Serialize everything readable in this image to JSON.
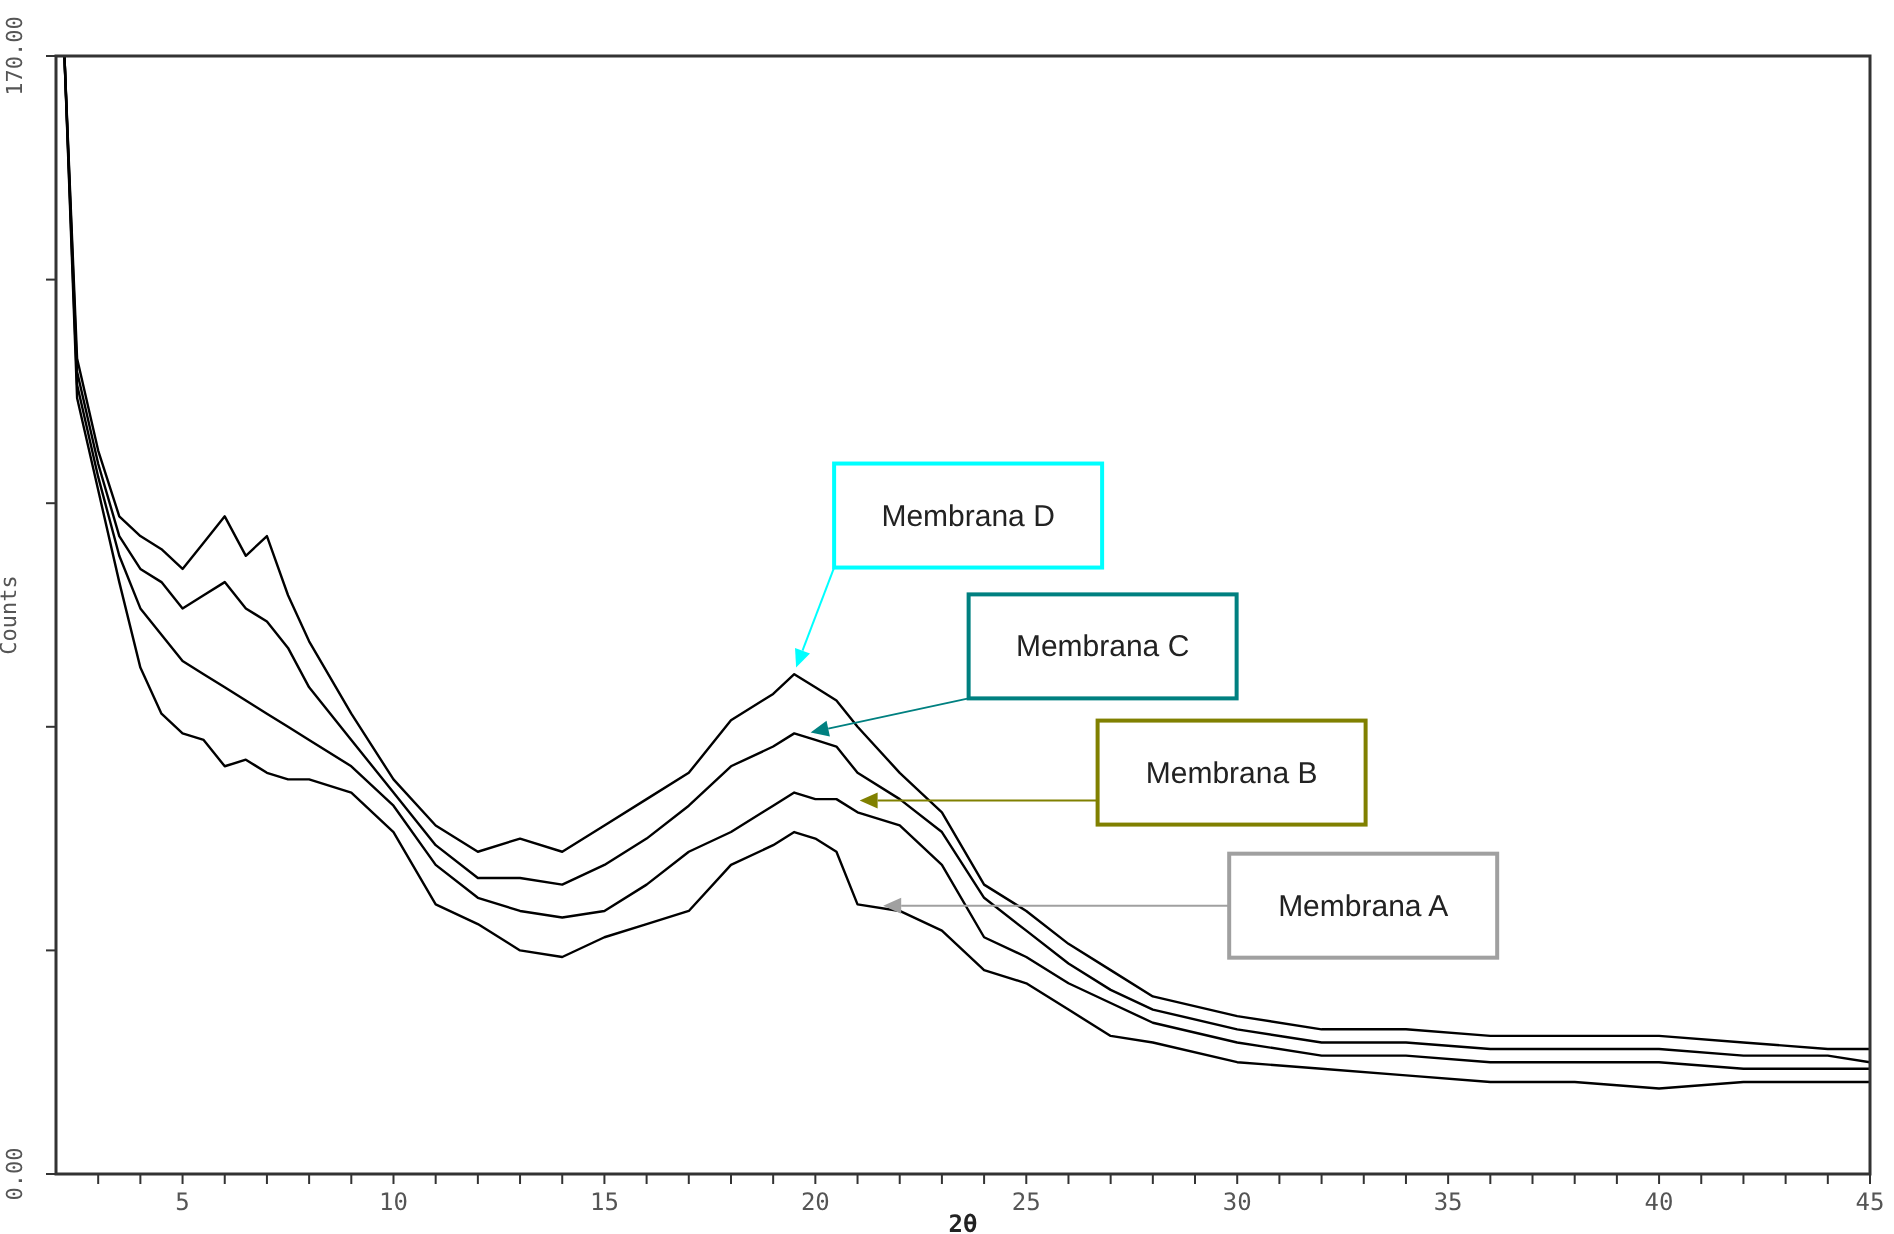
{
  "chart_data": {
    "type": "line",
    "xlabel": "2θ",
    "ylabel": "Counts",
    "x": [
      2.2,
      2.5,
      3,
      3.5,
      4,
      4.5,
      5,
      5.5,
      6,
      6.5,
      7,
      7.5,
      8,
      9,
      10,
      11,
      12,
      13,
      14,
      15,
      16,
      17,
      18,
      19,
      19.5,
      20,
      20.5,
      21,
      22,
      23,
      24,
      25,
      26,
      27,
      28,
      30,
      32,
      34,
      36,
      38,
      40,
      42,
      44,
      45
    ],
    "series": [
      {
        "color": "#000000",
        "values": [
          170,
          124,
          110,
          100,
          97,
          95,
          92,
          96,
          100,
          94,
          97,
          88,
          81,
          70,
          60,
          53,
          49,
          51,
          49,
          53,
          57,
          61,
          69,
          73,
          76,
          74,
          72,
          68,
          61,
          55,
          44,
          40,
          35,
          31,
          27,
          24,
          22,
          22,
          21,
          21,
          21,
          20,
          19,
          19
        ]
      },
      {
        "color": "#000000",
        "values": [
          170,
          122,
          108,
          97,
          92,
          90,
          86,
          88,
          90,
          86,
          84,
          80,
          74,
          66,
          58,
          50,
          45,
          45,
          44,
          47,
          51,
          56,
          62,
          65,
          67,
          66,
          65,
          61,
          57,
          52,
          42,
          37,
          32,
          28,
          25,
          22,
          20,
          20,
          19,
          19,
          19,
          18,
          18,
          17
        ]
      },
      {
        "color": "#000000",
        "values": [
          170,
          120,
          106,
          94,
          86,
          82,
          78,
          76,
          74,
          72,
          70,
          68,
          66,
          62,
          56,
          47,
          42,
          40,
          39,
          40,
          44,
          49,
          52,
          56,
          58,
          57,
          57,
          55,
          53,
          47,
          36,
          33,
          29,
          26,
          23,
          20,
          18,
          18,
          17,
          17,
          17,
          16,
          16,
          16
        ]
      },
      {
        "color": "#000000",
        "values": [
          170,
          118,
          104,
          90,
          77,
          70,
          67,
          66,
          62,
          63,
          61,
          60,
          60,
          58,
          52,
          41,
          38,
          34,
          33,
          36,
          38,
          40,
          47,
          50,
          52,
          51,
          49,
          41,
          40,
          37,
          31,
          29,
          25,
          21,
          20,
          17,
          16,
          15,
          14,
          14,
          13,
          14,
          14,
          14
        ]
      }
    ],
    "xlim": [
      2,
      45
    ],
    "xticks": [
      {
        "value": 3,
        "label": null
      },
      {
        "value": 4,
        "label": null
      },
      5,
      {
        "value": 6,
        "label": null
      },
      {
        "value": 7,
        "label": null
      },
      {
        "value": 8,
        "label": null
      },
      {
        "value": 9,
        "label": null
      },
      10,
      {
        "value": 11,
        "label": null
      },
      {
        "value": 12,
        "label": null
      },
      {
        "value": 13,
        "label": null
      },
      {
        "value": 14,
        "label": null
      },
      15,
      {
        "value": 16,
        "label": null
      },
      {
        "value": 17,
        "label": null
      },
      {
        "value": 18,
        "label": null
      },
      {
        "value": 19,
        "label": null
      },
      20,
      {
        "value": 21,
        "label": null
      },
      {
        "value": 22,
        "label": null
      },
      {
        "value": 23,
        "label": null
      },
      {
        "value": 24,
        "label": null
      },
      25,
      {
        "value": 26,
        "label": null
      },
      {
        "value": 27,
        "label": null
      },
      {
        "value": 28,
        "label": null
      },
      {
        "value": 29,
        "label": null
      },
      30,
      {
        "value": 31,
        "label": null
      },
      {
        "value": 32,
        "label": null
      },
      {
        "value": 33,
        "label": null
      },
      {
        "value": 34,
        "label": null
      },
      35,
      {
        "value": 36,
        "label": null
      },
      {
        "value": 37,
        "label": null
      },
      {
        "value": 38,
        "label": null
      },
      {
        "value": 39,
        "label": null
      },
      40,
      {
        "value": 41,
        "label": null
      },
      {
        "value": 42,
        "label": null
      },
      {
        "value": 43,
        "label": null
      },
      {
        "value": 44,
        "label": null
      },
      45
    ],
    "ylim": [
      0,
      170
    ],
    "yticks": [
      {
        "value": 0,
        "label": "0.00"
      },
      {
        "value": 34,
        "label": null
      },
      {
        "value": 68,
        "label": null
      },
      {
        "value": 102,
        "label": null
      },
      {
        "value": 136,
        "label": null
      },
      {
        "value": 170,
        "label": "170.00"
      }
    ],
    "annotations": [
      "Membrana D",
      "Membrana C",
      "Membrana B",
      "Membrana A"
    ]
  }
}
